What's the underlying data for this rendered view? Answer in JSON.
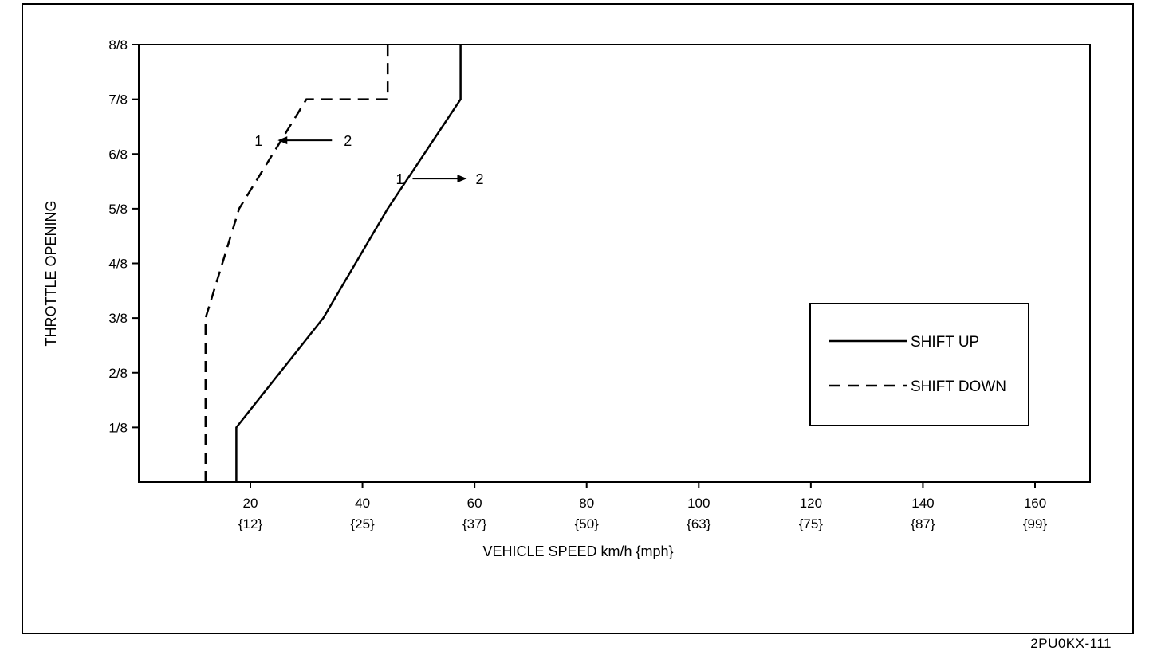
{
  "doc_code": "2PU0KX-111",
  "chart_data": {
    "type": "line",
    "xlabel": "VEHICLE SPEED km/h {mph}",
    "ylabel": "THROTTLE OPENING",
    "xlim": [
      0,
      170
    ],
    "ylim": [
      0,
      8
    ],
    "x_ticks": [
      {
        "value": 20,
        "label": "20",
        "sublabel": "{12}"
      },
      {
        "value": 40,
        "label": "40",
        "sublabel": "{25}"
      },
      {
        "value": 60,
        "label": "60",
        "sublabel": "{37}"
      },
      {
        "value": 80,
        "label": "80",
        "sublabel": "{50}"
      },
      {
        "value": 100,
        "label": "100",
        "sublabel": "{63}"
      },
      {
        "value": 120,
        "label": "120",
        "sublabel": "{75}"
      },
      {
        "value": 140,
        "label": "140",
        "sublabel": "{87}"
      },
      {
        "value": 160,
        "label": "160",
        "sublabel": "{99}"
      }
    ],
    "y_ticks": [
      {
        "value": 1,
        "label": "1/8"
      },
      {
        "value": 2,
        "label": "2/8"
      },
      {
        "value": 3,
        "label": "3/8"
      },
      {
        "value": 4,
        "label": "4/8"
      },
      {
        "value": 5,
        "label": "5/8"
      },
      {
        "value": 6,
        "label": "6/8"
      },
      {
        "value": 7,
        "label": "7/8"
      },
      {
        "value": 8,
        "label": "8/8"
      }
    ],
    "grid": false,
    "legend_position": "right",
    "series": [
      {
        "name": "SHIFT UP",
        "style": "solid",
        "color": "#000000",
        "points": [
          [
            17.5,
            0
          ],
          [
            17.5,
            1
          ],
          [
            33,
            3
          ],
          [
            44.5,
            5
          ],
          [
            57.5,
            7
          ],
          [
            57.5,
            8
          ]
        ]
      },
      {
        "name": "SHIFT DOWN",
        "style": "dashed",
        "color": "#000000",
        "points": [
          [
            12,
            0
          ],
          [
            12,
            3
          ],
          [
            18,
            5
          ],
          [
            30,
            7
          ],
          [
            44.5,
            7
          ],
          [
            44.5,
            8
          ]
        ]
      }
    ],
    "annotations": [
      {
        "from": "2",
        "to": "1",
        "direction": "left",
        "x": 30,
        "y": 6.25
      },
      {
        "from": "1",
        "to": "2",
        "direction": "right",
        "x": 53.5,
        "y": 5.55
      }
    ]
  }
}
